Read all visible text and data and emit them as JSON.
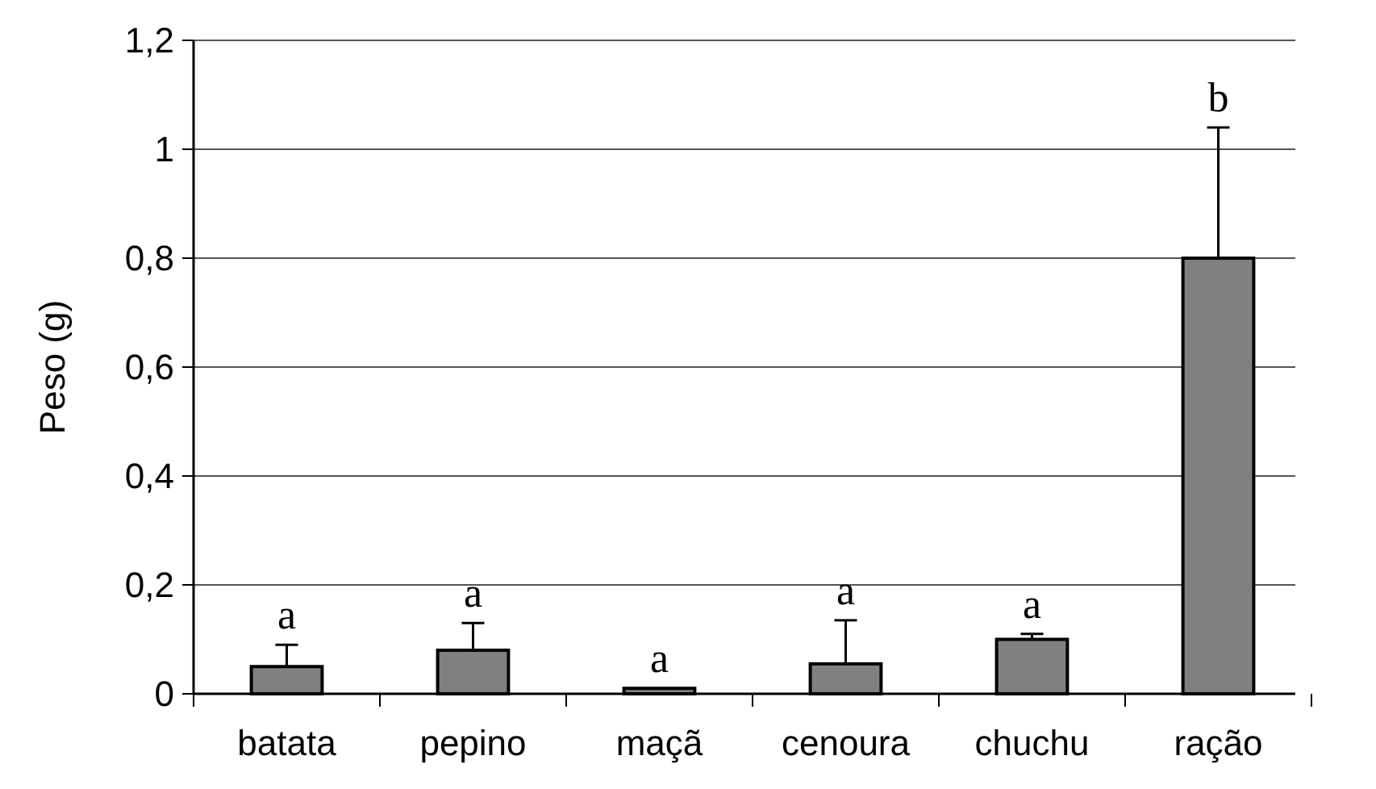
{
  "chart_data": {
    "type": "bar",
    "ylabel": "Peso (g)",
    "categories": [
      "batata",
      "pepino",
      "maçã",
      "cenoura",
      "chuchu",
      "ração"
    ],
    "values": [
      0.05,
      0.08,
      0.01,
      0.055,
      0.1,
      0.8
    ],
    "errors": [
      0.04,
      0.05,
      null,
      [
        0.055,
        0.135
      ],
      0.01,
      0.24
    ],
    "color": "#808080",
    "ylim": [
      0,
      1.2
    ],
    "yticks": [
      {
        "value": 0,
        "label": "0"
      },
      {
        "value": 0.2,
        "label": "0,2"
      },
      {
        "value": 0.4,
        "label": "0,4"
      },
      {
        "value": 0.6,
        "label": "0,6"
      },
      {
        "value": 0.8,
        "label": "0,8"
      },
      {
        "value": 1,
        "label": "1"
      },
      {
        "value": 1.2,
        "label": "1,2"
      }
    ],
    "grid": "y",
    "annotations": [
      "a",
      "a",
      "a",
      "a",
      "a",
      "b"
    ]
  }
}
